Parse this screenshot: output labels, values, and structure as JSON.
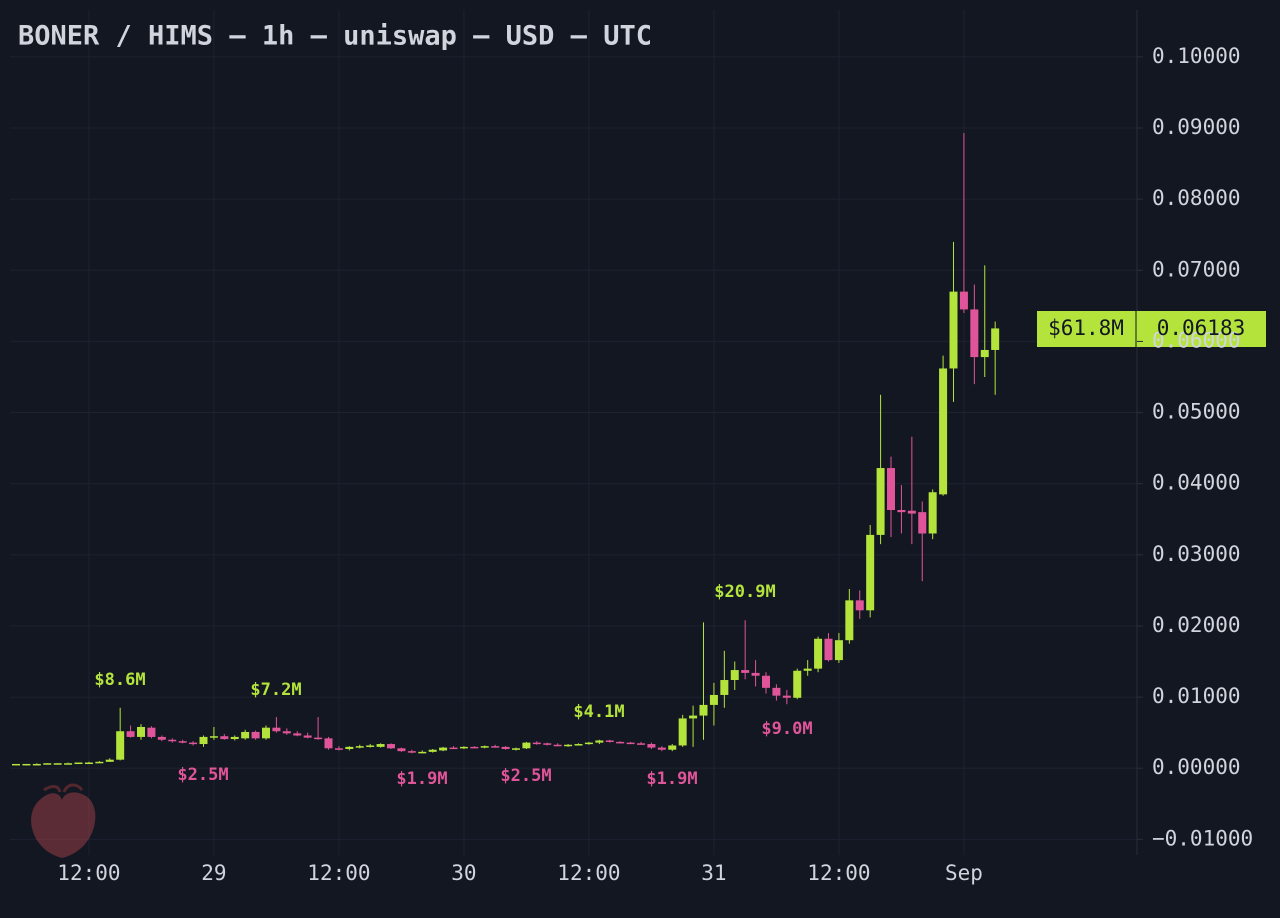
{
  "chart_data": {
    "type": "candlestick",
    "title": "BONER / HIMS — 1h — uniswap — USD — UTC",
    "categories": [
      null,
      null,
      null,
      null,
      null,
      null,
      null,
      "12:00",
      null,
      null,
      null,
      null,
      null,
      null,
      null,
      null,
      null,
      null,
      null,
      "29",
      null,
      null,
      null,
      null,
      null,
      null,
      null,
      null,
      null,
      null,
      null,
      "12:00",
      null,
      null,
      null,
      null,
      null,
      null,
      null,
      null,
      null,
      null,
      null,
      "30",
      null,
      null,
      null,
      null,
      null,
      null,
      null,
      null,
      null,
      null,
      null,
      "12:00",
      null,
      null,
      null,
      null,
      null,
      null,
      null,
      null,
      null,
      null,
      null,
      "31",
      null,
      null,
      null,
      null,
      null,
      null,
      null,
      null,
      null,
      null,
      null,
      "12:00",
      null,
      null,
      null,
      null,
      null,
      null,
      null,
      null,
      null,
      null,
      null,
      "Sep",
      null,
      null,
      null
    ],
    "open": [
      0.0005,
      0.0006,
      0.0006,
      0.0006,
      0.0007,
      0.0007,
      0.0007,
      0.0008,
      0.0008,
      0.0009,
      0.0012,
      0.0052,
      0.0044,
      0.0057,
      0.0044,
      0.004,
      0.0038,
      0.0036,
      0.0034,
      0.0044,
      0.0045,
      0.0041,
      0.0042,
      0.0051,
      0.0042,
      0.0057,
      0.0052,
      0.0049,
      0.0046,
      0.0043,
      0.0042,
      0.0028,
      0.0027,
      0.003,
      0.0031,
      0.003,
      0.0034,
      0.0028,
      0.0024,
      0.0022,
      0.0023,
      0.0025,
      0.0029,
      0.0028,
      0.003,
      0.0029,
      0.0031,
      0.003,
      0.0027,
      0.0028,
      0.0036,
      0.0035,
      0.0033,
      0.0032,
      0.0033,
      0.0034,
      0.0036,
      0.0039,
      0.0037,
      0.0036,
      0.0035,
      0.0034,
      0.0029,
      0.0026,
      0.0032,
      0.007,
      0.0074,
      0.0089,
      0.0103,
      0.0124,
      0.0138,
      0.0134,
      0.013,
      0.0113,
      0.0102,
      0.0099,
      0.0137,
      0.014,
      0.0182,
      0.0152,
      0.018,
      0.0236,
      0.0222,
      0.0328,
      0.0422,
      0.0363,
      0.0362,
      0.036,
      0.033,
      0.0385,
      0.0562,
      0.067,
      0.0645,
      0.0578,
      0.0588
    ],
    "high": [
      0.0006,
      0.0006,
      0.0007,
      0.0007,
      0.0007,
      0.0008,
      0.0008,
      0.0009,
      0.001,
      0.0014,
      0.0085,
      0.006,
      0.0062,
      0.0059,
      0.0046,
      0.0042,
      0.004,
      0.0038,
      0.0046,
      0.0058,
      0.0048,
      0.0046,
      0.0054,
      0.0053,
      0.006,
      0.0072,
      0.0056,
      0.0052,
      0.005,
      0.0072,
      0.0044,
      0.0031,
      0.0031,
      0.0033,
      0.0034,
      0.0035,
      0.0035,
      0.0029,
      0.0026,
      0.0025,
      0.0027,
      0.003,
      0.0031,
      0.0031,
      0.0031,
      0.0032,
      0.0033,
      0.0031,
      0.0029,
      0.0037,
      0.0038,
      0.0036,
      0.0035,
      0.0034,
      0.0035,
      0.0037,
      0.004,
      0.004,
      0.0038,
      0.0037,
      0.0037,
      0.0036,
      0.0031,
      0.0034,
      0.0075,
      0.0088,
      0.0205,
      0.012,
      0.0165,
      0.015,
      0.0208,
      0.0152,
      0.0135,
      0.0118,
      0.011,
      0.014,
      0.0152,
      0.0185,
      0.019,
      0.019,
      0.0252,
      0.025,
      0.0342,
      0.0525,
      0.0438,
      0.0398,
      0.0466,
      0.0375,
      0.0392,
      0.058,
      0.074,
      0.0893,
      0.068,
      0.0707,
      0.0628
    ],
    "low": [
      0.0005,
      0.0005,
      0.0006,
      0.0006,
      0.0006,
      0.0007,
      0.0007,
      0.0007,
      0.0008,
      0.0009,
      0.0011,
      0.0043,
      0.004,
      0.0042,
      0.0038,
      0.0036,
      0.0035,
      0.0032,
      0.003,
      0.004,
      0.004,
      0.0039,
      0.004,
      0.004,
      0.004,
      0.005,
      0.0047,
      0.0045,
      0.0042,
      0.004,
      0.0026,
      0.0025,
      0.0025,
      0.0028,
      0.0029,
      0.0029,
      0.0027,
      0.0023,
      0.0021,
      0.0021,
      0.0022,
      0.0024,
      0.0027,
      0.0027,
      0.0028,
      0.0028,
      0.0029,
      0.0026,
      0.0025,
      0.0027,
      0.0033,
      0.0032,
      0.0031,
      0.003,
      0.0032,
      0.0033,
      0.0034,
      0.0036,
      0.0035,
      0.0034,
      0.0033,
      0.0027,
      0.0024,
      0.0024,
      0.003,
      0.003,
      0.004,
      0.006,
      0.0085,
      0.011,
      0.0125,
      0.0115,
      0.0105,
      0.0095,
      0.009,
      0.0097,
      0.013,
      0.0135,
      0.015,
      0.0148,
      0.0175,
      0.021,
      0.0212,
      0.0315,
      0.0325,
      0.033,
      0.0315,
      0.0263,
      0.0322,
      0.0383,
      0.0515,
      0.064,
      0.054,
      0.055,
      0.0525
    ],
    "close": [
      0.0006,
      0.0006,
      0.0006,
      0.0007,
      0.0007,
      0.0007,
      0.0008,
      0.0008,
      0.0009,
      0.0012,
      0.0052,
      0.0044,
      0.0058,
      0.0044,
      0.004,
      0.0038,
      0.0036,
      0.0034,
      0.0044,
      0.0045,
      0.0041,
      0.0044,
      0.0051,
      0.0042,
      0.0057,
      0.0052,
      0.0049,
      0.0046,
      0.0043,
      0.0042,
      0.0028,
      0.0027,
      0.003,
      0.0031,
      0.0032,
      0.0034,
      0.0028,
      0.0024,
      0.0022,
      0.0023,
      0.0026,
      0.0029,
      0.0028,
      0.003,
      0.0029,
      0.0031,
      0.003,
      0.0027,
      0.0028,
      0.0036,
      0.0035,
      0.0033,
      0.0032,
      0.0033,
      0.0034,
      0.0036,
      0.0039,
      0.0037,
      0.0036,
      0.0035,
      0.0034,
      0.0029,
      0.0026,
      0.0032,
      0.007,
      0.0074,
      0.0089,
      0.0103,
      0.0124,
      0.0138,
      0.0134,
      0.013,
      0.0113,
      0.0102,
      0.0099,
      0.0137,
      0.014,
      0.0182,
      0.0152,
      0.018,
      0.0236,
      0.0222,
      0.0328,
      0.0422,
      0.0363,
      0.036,
      0.0358,
      0.033,
      0.0388,
      0.0562,
      0.067,
      0.0645,
      0.0578,
      0.0588,
      0.06183
    ],
    "up_color": "#b4e43c",
    "down_color": "#e0559a",
    "ylim": [
      -0.0122,
      0.108
    ],
    "yticks": [
      {
        "value": -0.01,
        "label": "−0.01000"
      },
      {
        "value": 0,
        "label": "0.00000"
      },
      {
        "value": 0.01,
        "label": "0.01000"
      },
      {
        "value": 0.02,
        "label": "0.02000"
      },
      {
        "value": 0.03,
        "label": "0.03000"
      },
      {
        "value": 0.04,
        "label": "0.04000"
      },
      {
        "value": 0.05,
        "label": "0.05000"
      },
      {
        "value": 0.06,
        "label": "0.06000"
      },
      {
        "value": 0.07,
        "label": "0.07000"
      },
      {
        "value": 0.08,
        "label": "0.08000"
      },
      {
        "value": 0.09,
        "label": "0.09000"
      },
      {
        "value": 0.1,
        "label": "0.10000"
      }
    ],
    "grid": true,
    "last_price": 0.06183,
    "market_cap_label": "$61.8M",
    "annotations": [
      "$8.6M",
      "$2.5M",
      "$7.2M",
      "$1.9M",
      "$2.5M",
      "$4.1M",
      "$1.9M",
      "$20.9M",
      "$9.0M"
    ]
  }
}
